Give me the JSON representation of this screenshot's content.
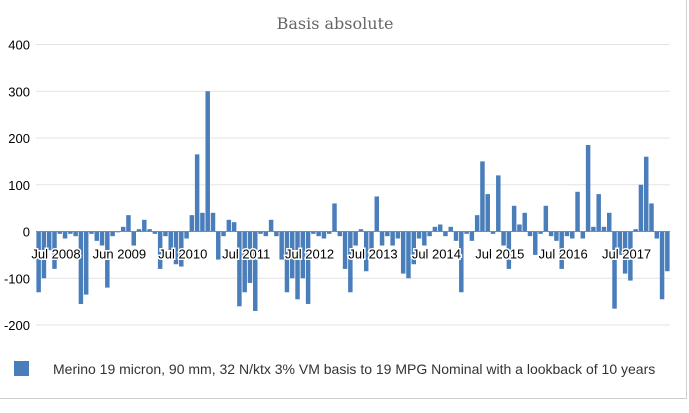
{
  "chart_data": {
    "type": "bar",
    "title": "Basis absolute",
    "xlabel": "",
    "ylabel": "",
    "ylim": [
      -220,
      420
    ],
    "yticks": [
      400,
      300,
      200,
      100,
      0,
      -100,
      -200
    ],
    "ytick_labels": [
      "400",
      "300",
      "200",
      "100",
      "0",
      "-100",
      "-200"
    ],
    "xtick_labels": [
      "Jul 2008",
      "Jun 2009",
      "Jul 2010",
      "Jul 2011",
      "Jul 2012",
      "Jul 2013",
      "Jul 2014",
      "Jul 2015",
      "Jul 2016",
      "Jul 2017"
    ],
    "xtick_index": [
      0,
      12,
      24,
      36,
      48,
      60,
      72,
      84,
      96,
      108
    ],
    "series": [
      {
        "name": "Merino 19 micron, 90 mm, 32 N/ktx 3% VM basis to 19 MPG Nominal with a lookback of 10 years",
        "color": "#4a7ebb",
        "values": [
          -130,
          -100,
          -40,
          -80,
          -5,
          -15,
          -5,
          -10,
          -155,
          -135,
          -5,
          -20,
          -30,
          -120,
          -10,
          0,
          10,
          35,
          -30,
          5,
          25,
          5,
          -5,
          -80,
          -10,
          -55,
          -70,
          -75,
          -15,
          35,
          165,
          40,
          300,
          40,
          -60,
          -10,
          25,
          20,
          -160,
          -130,
          -110,
          -170,
          -5,
          -10,
          25,
          -10,
          -60,
          -130,
          -100,
          -145,
          -100,
          -155,
          -5,
          -10,
          -15,
          -5,
          60,
          -10,
          -80,
          -130,
          -30,
          5,
          -85,
          -40,
          75,
          -30,
          -10,
          -30,
          -15,
          -90,
          -100,
          -70,
          -15,
          -30,
          -10,
          10,
          15,
          -10,
          10,
          -20,
          -130,
          -5,
          -20,
          35,
          150,
          80,
          -5,
          120,
          -30,
          -80,
          55,
          15,
          40,
          -10,
          -50,
          -5,
          55,
          -10,
          -20,
          -80,
          -10,
          -15,
          85,
          -15,
          185,
          10,
          80,
          10,
          40,
          -165,
          -50,
          -90,
          -105,
          5,
          100,
          160,
          60,
          -15,
          -145,
          -85
        ]
      }
    ]
  },
  "legend": {
    "label": "Merino 19 micron, 90 mm, 32 N/ktx 3% VM basis to 19 MPG Nominal with a lookback of 10 years",
    "color": "#4a7ebb"
  }
}
